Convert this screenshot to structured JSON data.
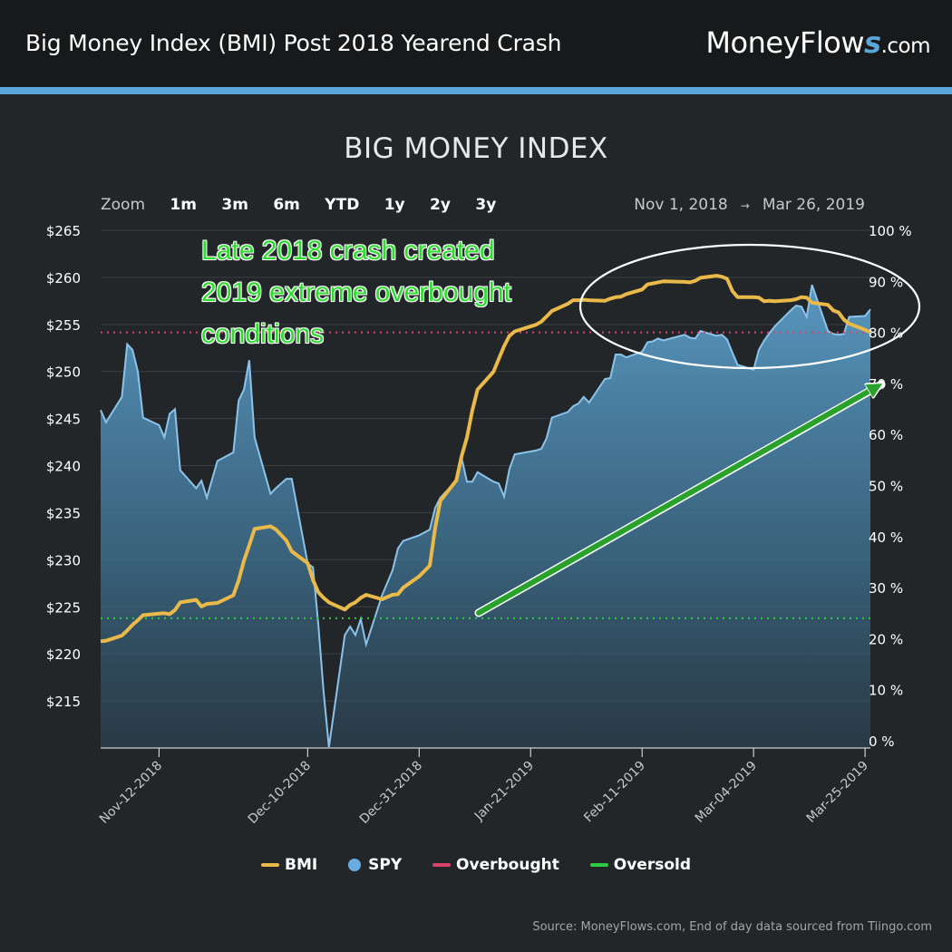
{
  "header": {
    "title": "Big Money Index (BMI) Post 2018 Yearend Crash",
    "brand_main": "MoneyFlow",
    "brand_s": "s",
    "brand_tld": ".com"
  },
  "zoom": {
    "label": "Zoom",
    "options": [
      "1m",
      "3m",
      "6m",
      "YTD",
      "1y",
      "2y",
      "3y"
    ]
  },
  "range": {
    "from": "Nov 1, 2018",
    "arrow": "→",
    "to": "Mar 26, 2019"
  },
  "annotation": {
    "lines": [
      "Late 2018 crash created",
      "2019 extreme overbought",
      "conditions"
    ]
  },
  "source": "Source: MoneyFlows.com, End of day data sourced from Tiingo.com",
  "colors": {
    "bmi": "#e9b94a",
    "spy_fill": "#4e8db5",
    "spy_line": "#8cc3e9",
    "overbought": "#d9436a",
    "oversold": "#2ecc40",
    "arrow": "#2aa12a"
  },
  "chart_data": {
    "type": "line",
    "title": "BIG MONEY INDEX",
    "y_left_label": "SPY",
    "y_right_label": "BMI",
    "y_left_ticks": [
      "$215",
      "$220",
      "$225",
      "$230",
      "$235",
      "$240",
      "$245",
      "$250",
      "$255",
      "$260",
      "$265"
    ],
    "y_right_ticks": [
      "0 %",
      "10 %",
      "20 %",
      "30 %",
      "40 %",
      "50 %",
      "60 %",
      "70 %",
      "80 %",
      "90 %",
      "100 %"
    ],
    "y_left_range": [
      210,
      265
    ],
    "y_right_range": [
      0,
      100
    ],
    "x_range": [
      "2018-11-01",
      "2019-03-26"
    ],
    "x_tick_labels": [
      "Nov-12-2018",
      "Dec-10-2018",
      "Dec-31-2018",
      "Jan-21-2019",
      "Feb-11-2019",
      "Mar-04-2019",
      "Mar-25-2019"
    ],
    "x_tick_dates": [
      "2018-11-12",
      "2018-12-10",
      "2018-12-31",
      "2019-01-21",
      "2019-02-11",
      "2019-03-04",
      "2019-03-25"
    ],
    "overbought_level": 80,
    "oversold_level": 24,
    "legend": [
      "BMI",
      "SPY",
      "Overbought",
      "Oversold"
    ],
    "series": [
      {
        "name": "SPY",
        "x": [
          "2018-11-01",
          "2018-11-02",
          "2018-11-05",
          "2018-11-06",
          "2018-11-07",
          "2018-11-08",
          "2018-11-09",
          "2018-11-12",
          "2018-11-13",
          "2018-11-14",
          "2018-11-15",
          "2018-11-16",
          "2018-11-19",
          "2018-11-20",
          "2018-11-21",
          "2018-11-23",
          "2018-11-26",
          "2018-11-27",
          "2018-11-28",
          "2018-11-29",
          "2018-11-30",
          "2018-12-03",
          "2018-12-04",
          "2018-12-06",
          "2018-12-07",
          "2018-12-10",
          "2018-12-11",
          "2018-12-12",
          "2018-12-13",
          "2018-12-14",
          "2018-12-17",
          "2018-12-18",
          "2018-12-19",
          "2018-12-20",
          "2018-12-21",
          "2018-12-24",
          "2018-12-26",
          "2018-12-27",
          "2018-12-28",
          "2018-12-31",
          "2019-01-02",
          "2019-01-03",
          "2019-01-04",
          "2019-01-07",
          "2019-01-08",
          "2019-01-09",
          "2019-01-10",
          "2019-01-11",
          "2019-01-14",
          "2019-01-15",
          "2019-01-16",
          "2019-01-17",
          "2019-01-18",
          "2019-01-22",
          "2019-01-23",
          "2019-01-24",
          "2019-01-25",
          "2019-01-28",
          "2019-01-29",
          "2019-01-30",
          "2019-01-31",
          "2019-02-01",
          "2019-02-04",
          "2019-02-05",
          "2019-02-06",
          "2019-02-07",
          "2019-02-08",
          "2019-02-11",
          "2019-02-12",
          "2019-02-13",
          "2019-02-14",
          "2019-02-15",
          "2019-02-19",
          "2019-02-20",
          "2019-02-21",
          "2019-02-22",
          "2019-02-25",
          "2019-02-26",
          "2019-02-27",
          "2019-02-28",
          "2019-03-01",
          "2019-03-04",
          "2019-03-05",
          "2019-03-06",
          "2019-03-07",
          "2019-03-08",
          "2019-03-11",
          "2019-03-12",
          "2019-03-13",
          "2019-03-14",
          "2019-03-15",
          "2019-03-18",
          "2019-03-19",
          "2019-03-20",
          "2019-03-21",
          "2019-03-22",
          "2019-03-25",
          "2019-03-26"
        ],
        "values": [
          245.9,
          244.6,
          247.3,
          252.9,
          252.3,
          250.0,
          245.1,
          244.3,
          243.0,
          245.5,
          246.0,
          239.5,
          237.6,
          238.4,
          236.6,
          240.5,
          241.4,
          246.9,
          248.1,
          251.2,
          243.0,
          237.0,
          237.6,
          238.6,
          238.6,
          229.6,
          229.2,
          223.1,
          216.0,
          210.1,
          222.0,
          222.9,
          222.0,
          223.7,
          221.0,
          226.2,
          228.9,
          231.2,
          232.0,
          232.6,
          233.2,
          235.5,
          236.6,
          238.4,
          240.8,
          238.3,
          238.3,
          239.3,
          238.3,
          238.1,
          236.7,
          239.6,
          241.2,
          241.6,
          241.8,
          242.9,
          245.1,
          245.7,
          246.3,
          246.6,
          247.3,
          246.7,
          249.2,
          249.3,
          251.8,
          251.8,
          251.5,
          252.1,
          253.1,
          253.2,
          253.5,
          253.3,
          253.9,
          253.6,
          253.5,
          254.3,
          253.8,
          253.9,
          253.4,
          252.0,
          250.7,
          250.2,
          252.3,
          253.3,
          254.1,
          254.8,
          256.5,
          257.0,
          256.9,
          255.8,
          259.2,
          254.3,
          254.0,
          253.9,
          254.0,
          255.8,
          255.9,
          256.6
        ]
      },
      {
        "name": "BMI",
        "x": [
          "2018-11-01",
          "2018-11-02",
          "2018-11-05",
          "2018-11-06",
          "2018-11-07",
          "2018-11-08",
          "2018-11-09",
          "2018-11-12",
          "2018-11-13",
          "2018-11-14",
          "2018-11-15",
          "2018-11-16",
          "2018-11-19",
          "2018-11-20",
          "2018-11-21",
          "2018-11-23",
          "2018-11-26",
          "2018-11-27",
          "2018-11-28",
          "2018-11-29",
          "2018-11-30",
          "2018-12-03",
          "2018-12-04",
          "2018-12-06",
          "2018-12-07",
          "2018-12-10",
          "2018-12-11",
          "2018-12-12",
          "2018-12-13",
          "2018-12-14",
          "2018-12-17",
          "2018-12-18",
          "2018-12-19",
          "2018-12-20",
          "2018-12-21",
          "2018-12-24",
          "2018-12-26",
          "2018-12-27",
          "2018-12-28",
          "2018-12-31",
          "2019-01-02",
          "2019-01-03",
          "2019-01-04",
          "2019-01-07",
          "2019-01-08",
          "2019-01-09",
          "2019-01-10",
          "2019-01-11",
          "2019-01-14",
          "2019-01-15",
          "2019-01-16",
          "2019-01-17",
          "2019-01-18",
          "2019-01-22",
          "2019-01-23",
          "2019-01-24",
          "2019-01-25",
          "2019-01-28",
          "2019-01-29",
          "2019-01-30",
          "2019-01-31",
          "2019-02-01",
          "2019-02-04",
          "2019-02-05",
          "2019-02-06",
          "2019-02-07",
          "2019-02-08",
          "2019-02-11",
          "2019-02-12",
          "2019-02-13",
          "2019-02-14",
          "2019-02-15",
          "2019-02-19",
          "2019-02-20",
          "2019-02-21",
          "2019-02-22",
          "2019-02-25",
          "2019-02-26",
          "2019-02-27",
          "2019-02-28",
          "2019-03-01",
          "2019-03-04",
          "2019-03-05",
          "2019-03-06",
          "2019-03-07",
          "2019-03-08",
          "2019-03-11",
          "2019-03-12",
          "2019-03-13",
          "2019-03-14",
          "2019-03-15",
          "2019-03-18",
          "2019-03-19",
          "2019-03-20",
          "2019-03-21",
          "2019-03-22",
          "2019-03-25",
          "2019-03-26"
        ],
        "values": [
          19.5,
          19.6,
          20.6,
          21.6,
          22.7,
          23.6,
          24.6,
          24.9,
          25.0,
          24.8,
          25.6,
          27.1,
          27.6,
          26.3,
          26.8,
          27.0,
          28.5,
          31.4,
          35.3,
          38.3,
          41.5,
          42.0,
          41.4,
          39.2,
          37.1,
          34.8,
          31.5,
          29.1,
          28.0,
          27.1,
          25.7,
          26.6,
          27.1,
          28.0,
          28.6,
          27.7,
          28.6,
          28.7,
          30.0,
          32.2,
          34.3,
          41.6,
          47.0,
          51.0,
          55.8,
          59.4,
          64.7,
          68.8,
          72.3,
          74.8,
          77.3,
          79.3,
          80.2,
          81.5,
          82.1,
          83.1,
          84.2,
          85.6,
          86.3,
          86.3,
          86.4,
          86.3,
          86.2,
          86.6,
          86.9,
          87.0,
          87.5,
          88.4,
          89.4,
          89.6,
          89.8,
          90.0,
          89.9,
          89.8,
          90.1,
          90.7,
          91.1,
          90.9,
          90.5,
          88.1,
          86.9,
          86.9,
          86.8,
          86.1,
          86.2,
          86.1,
          86.3,
          86.5,
          86.9,
          86.8,
          85.8,
          85.4,
          84.3,
          83.9,
          82.5,
          81.7,
          80.5,
          80.0
        ]
      }
    ]
  }
}
